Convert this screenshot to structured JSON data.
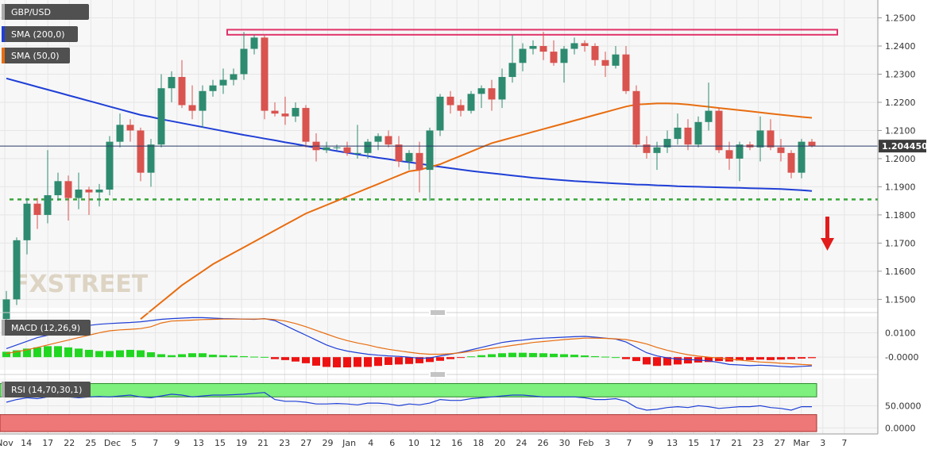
{
  "colors": {
    "up": "#2e8b6f",
    "down": "#d9534f",
    "sma200": "#1f3fd6",
    "sma50": "#e86d10",
    "support": "#3aa63a",
    "resistance": "#e0336a",
    "arrow": "#e21b1b",
    "macd_pos": "#21d621",
    "macd_neg": "#ee1111",
    "rsi_overbought": "#7ef07e",
    "rsi_oversold": "#ee7777",
    "price_tag": "#3c3c3c"
  },
  "legend": {
    "symbol": "GBP/USD",
    "sma200": "SMA (200,0)",
    "sma50": "SMA (50,0)",
    "macd": "MACD (12,26,9)",
    "rsi": "RSI (14,70,30,1)"
  },
  "watermark": "FXSTREET",
  "chart_data": [
    {
      "type": "candlestick",
      "panel": "price",
      "ylim": [
        1.147,
        1.2555
      ],
      "y_ticks": [
        "1.2500",
        "1.2400",
        "1.2300",
        "1.2200",
        "1.2100",
        "1.2000",
        "1.1900",
        "1.1800",
        "1.1700",
        "1.1600",
        "1.1500"
      ],
      "y_tick_values": [
        1.25,
        1.24,
        1.23,
        1.22,
        1.21,
        1.2,
        1.19,
        1.18,
        1.17,
        1.16,
        1.15
      ],
      "last_price": 1.20445,
      "last_price_label": "1.204450",
      "x_labels": [
        "Nov",
        "14",
        "17",
        "22",
        "25",
        "Dec",
        "5",
        "7",
        "9",
        "13",
        "15",
        "19",
        "21",
        "23",
        "27",
        "29",
        "Jan",
        "4",
        "6",
        "10",
        "12",
        "16",
        "18",
        "20",
        "24",
        "26",
        "30",
        "Feb",
        "3",
        "7",
        "9",
        "13",
        "15",
        "17",
        "21",
        "23",
        "27",
        "Mar",
        "3",
        "7"
      ],
      "candles": [
        {
          "o": 1.143,
          "h": 1.153,
          "l": 1.138,
          "c": 1.15
        },
        {
          "o": 1.15,
          "h": 1.172,
          "l": 1.148,
          "c": 1.171
        },
        {
          "o": 1.171,
          "h": 1.186,
          "l": 1.166,
          "c": 1.184
        },
        {
          "o": 1.184,
          "h": 1.186,
          "l": 1.175,
          "c": 1.18
        },
        {
          "o": 1.18,
          "h": 1.203,
          "l": 1.177,
          "c": 1.187
        },
        {
          "o": 1.187,
          "h": 1.195,
          "l": 1.185,
          "c": 1.192
        },
        {
          "o": 1.192,
          "h": 1.194,
          "l": 1.178,
          "c": 1.186
        },
        {
          "o": 1.186,
          "h": 1.195,
          "l": 1.182,
          "c": 1.189
        },
        {
          "o": 1.189,
          "h": 1.19,
          "l": 1.18,
          "c": 1.188
        },
        {
          "o": 1.188,
          "h": 1.191,
          "l": 1.183,
          "c": 1.189
        },
        {
          "o": 1.189,
          "h": 1.208,
          "l": 1.187,
          "c": 1.206
        },
        {
          "o": 1.206,
          "h": 1.216,
          "l": 1.204,
          "c": 1.212
        },
        {
          "o": 1.212,
          "h": 1.214,
          "l": 1.206,
          "c": 1.21
        },
        {
          "o": 1.21,
          "h": 1.211,
          "l": 1.192,
          "c": 1.195
        },
        {
          "o": 1.195,
          "h": 1.207,
          "l": 1.19,
          "c": 1.205
        },
        {
          "o": 1.205,
          "h": 1.23,
          "l": 1.204,
          "c": 1.225
        },
        {
          "o": 1.225,
          "h": 1.231,
          "l": 1.22,
          "c": 1.229
        },
        {
          "o": 1.229,
          "h": 1.235,
          "l": 1.218,
          "c": 1.219
        },
        {
          "o": 1.219,
          "h": 1.226,
          "l": 1.214,
          "c": 1.217
        },
        {
          "o": 1.217,
          "h": 1.226,
          "l": 1.211,
          "c": 1.224
        },
        {
          "o": 1.224,
          "h": 1.228,
          "l": 1.222,
          "c": 1.226
        },
        {
          "o": 1.226,
          "h": 1.232,
          "l": 1.223,
          "c": 1.228
        },
        {
          "o": 1.228,
          "h": 1.232,
          "l": 1.226,
          "c": 1.23
        },
        {
          "o": 1.23,
          "h": 1.245,
          "l": 1.228,
          "c": 1.239
        },
        {
          "o": 1.239,
          "h": 1.244,
          "l": 1.237,
          "c": 1.243
        },
        {
          "o": 1.243,
          "h": 1.244,
          "l": 1.214,
          "c": 1.217
        },
        {
          "o": 1.217,
          "h": 1.22,
          "l": 1.215,
          "c": 1.216
        },
        {
          "o": 1.216,
          "h": 1.222,
          "l": 1.212,
          "c": 1.215
        },
        {
          "o": 1.215,
          "h": 1.22,
          "l": 1.213,
          "c": 1.218
        },
        {
          "o": 1.218,
          "h": 1.219,
          "l": 1.204,
          "c": 1.206
        },
        {
          "o": 1.206,
          "h": 1.209,
          "l": 1.199,
          "c": 1.203
        },
        {
          "o": 1.203,
          "h": 1.206,
          "l": 1.202,
          "c": 1.204
        },
        {
          "o": 1.204,
          "h": 1.205,
          "l": 1.203,
          "c": 1.204
        },
        {
          "o": 1.204,
          "h": 1.206,
          "l": 1.201,
          "c": 1.202
        },
        {
          "o": 1.202,
          "h": 1.212,
          "l": 1.2,
          "c": 1.202
        },
        {
          "o": 1.202,
          "h": 1.207,
          "l": 1.2,
          "c": 1.206
        },
        {
          "o": 1.206,
          "h": 1.209,
          "l": 1.203,
          "c": 1.208
        },
        {
          "o": 1.208,
          "h": 1.21,
          "l": 1.204,
          "c": 1.205
        },
        {
          "o": 1.205,
          "h": 1.208,
          "l": 1.197,
          "c": 1.199
        },
        {
          "o": 1.199,
          "h": 1.203,
          "l": 1.196,
          "c": 1.202
        },
        {
          "o": 1.202,
          "h": 1.206,
          "l": 1.188,
          "c": 1.196
        },
        {
          "o": 1.196,
          "h": 1.211,
          "l": 1.185,
          "c": 1.21
        },
        {
          "o": 1.21,
          "h": 1.223,
          "l": 1.208,
          "c": 1.222
        },
        {
          "o": 1.222,
          "h": 1.224,
          "l": 1.216,
          "c": 1.219
        },
        {
          "o": 1.219,
          "h": 1.221,
          "l": 1.215,
          "c": 1.217
        },
        {
          "o": 1.217,
          "h": 1.224,
          "l": 1.216,
          "c": 1.223
        },
        {
          "o": 1.223,
          "h": 1.226,
          "l": 1.218,
          "c": 1.225
        },
        {
          "o": 1.225,
          "h": 1.228,
          "l": 1.217,
          "c": 1.221
        },
        {
          "o": 1.221,
          "h": 1.232,
          "l": 1.218,
          "c": 1.229
        },
        {
          "o": 1.229,
          "h": 1.244,
          "l": 1.227,
          "c": 1.234
        },
        {
          "o": 1.234,
          "h": 1.241,
          "l": 1.231,
          "c": 1.239
        },
        {
          "o": 1.239,
          "h": 1.242,
          "l": 1.237,
          "c": 1.24
        },
        {
          "o": 1.24,
          "h": 1.245,
          "l": 1.235,
          "c": 1.238
        },
        {
          "o": 1.238,
          "h": 1.242,
          "l": 1.233,
          "c": 1.234
        },
        {
          "o": 1.234,
          "h": 1.24,
          "l": 1.227,
          "c": 1.239
        },
        {
          "o": 1.239,
          "h": 1.243,
          "l": 1.237,
          "c": 1.241
        },
        {
          "o": 1.241,
          "h": 1.242,
          "l": 1.238,
          "c": 1.24
        },
        {
          "o": 1.24,
          "h": 1.241,
          "l": 1.233,
          "c": 1.235
        },
        {
          "o": 1.235,
          "h": 1.238,
          "l": 1.229,
          "c": 1.233
        },
        {
          "o": 1.233,
          "h": 1.24,
          "l": 1.232,
          "c": 1.237
        },
        {
          "o": 1.237,
          "h": 1.24,
          "l": 1.223,
          "c": 1.224
        },
        {
          "o": 1.224,
          "h": 1.226,
          "l": 1.204,
          "c": 1.205
        },
        {
          "o": 1.205,
          "h": 1.208,
          "l": 1.2,
          "c": 1.202
        },
        {
          "o": 1.202,
          "h": 1.206,
          "l": 1.196,
          "c": 1.204
        },
        {
          "o": 1.204,
          "h": 1.21,
          "l": 1.202,
          "c": 1.207
        },
        {
          "o": 1.207,
          "h": 1.216,
          "l": 1.205,
          "c": 1.211
        },
        {
          "o": 1.211,
          "h": 1.214,
          "l": 1.203,
          "c": 1.205
        },
        {
          "o": 1.205,
          "h": 1.215,
          "l": 1.204,
          "c": 1.213
        },
        {
          "o": 1.213,
          "h": 1.227,
          "l": 1.21,
          "c": 1.217
        },
        {
          "o": 1.217,
          "h": 1.218,
          "l": 1.202,
          "c": 1.203
        },
        {
          "o": 1.203,
          "h": 1.206,
          "l": 1.196,
          "c": 1.2
        },
        {
          "o": 1.2,
          "h": 1.206,
          "l": 1.192,
          "c": 1.205
        },
        {
          "o": 1.205,
          "h": 1.206,
          "l": 1.203,
          "c": 1.204
        },
        {
          "o": 1.204,
          "h": 1.215,
          "l": 1.199,
          "c": 1.21
        },
        {
          "o": 1.21,
          "h": 1.214,
          "l": 1.203,
          "c": 1.204
        },
        {
          "o": 1.204,
          "h": 1.207,
          "l": 1.199,
          "c": 1.202
        },
        {
          "o": 1.202,
          "h": 1.203,
          "l": 1.193,
          "c": 1.195
        },
        {
          "o": 1.195,
          "h": 1.207,
          "l": 1.193,
          "c": 1.206
        },
        {
          "o": 1.206,
          "h": 1.207,
          "l": 1.204,
          "c": 1.20445
        }
      ],
      "sma200": [
        1.2285,
        1.2275,
        1.2265,
        1.2255,
        1.2245,
        1.2235,
        1.2225,
        1.2215,
        1.2205,
        1.2195,
        1.2185,
        1.2175,
        1.2165,
        1.2155,
        1.2148,
        1.214,
        1.2133,
        1.2126,
        1.2119,
        1.2112,
        1.2105,
        1.2098,
        1.2091,
        1.2084,
        1.2078,
        1.2071,
        1.2065,
        1.2058,
        1.2052,
        1.2045,
        1.2039,
        1.2033,
        1.2027,
        1.2021,
        1.2015,
        1.2009,
        1.2003,
        1.1998,
        1.1992,
        1.1987,
        1.1982,
        1.1976,
        1.1971,
        1.1966,
        1.1961,
        1.1956,
        1.1952,
        1.1948,
        1.1944,
        1.194,
        1.1936,
        1.1932,
        1.1929,
        1.1926,
        1.1923,
        1.192,
        1.1918,
        1.1916,
        1.1914,
        1.1912,
        1.191,
        1.1908,
        1.1907,
        1.1905,
        1.1904,
        1.1902,
        1.1901,
        1.19,
        1.1899,
        1.1898,
        1.1897,
        1.1896,
        1.1895,
        1.1894,
        1.1893,
        1.1892,
        1.189,
        1.1888,
        1.1885
      ],
      "sma50": [
        1.143,
        1.143,
        1.143,
        1.143,
        1.143,
        1.143,
        1.143,
        1.143,
        1.143,
        1.143,
        1.143,
        1.143,
        1.143,
        1.143,
        1.146,
        1.149,
        1.152,
        1.155,
        1.1575,
        1.16,
        1.1625,
        1.1645,
        1.1665,
        1.1685,
        1.1705,
        1.1725,
        1.1745,
        1.1765,
        1.1785,
        1.1805,
        1.182,
        1.1835,
        1.185,
        1.1865,
        1.188,
        1.1895,
        1.191,
        1.1925,
        1.194,
        1.1955,
        1.196,
        1.197,
        1.198,
        1.1995,
        1.201,
        1.2025,
        1.204,
        1.2055,
        1.2065,
        1.2075,
        1.2085,
        1.2095,
        1.2105,
        1.2115,
        1.2125,
        1.2135,
        1.2145,
        1.2155,
        1.2165,
        1.2175,
        1.2185,
        1.2192,
        1.2194,
        1.2196,
        1.2196,
        1.2195,
        1.2192,
        1.2188,
        1.2184,
        1.218,
        1.2176,
        1.2172,
        1.2168,
        1.2164,
        1.216,
        1.2156,
        1.2152,
        1.2148,
        1.2145
      ],
      "resistance_band": [
        1.244,
        1.2458
      ],
      "support_level": 1.1855
    },
    {
      "type": "macd",
      "panel": "macd",
      "ylim": [
        -0.0045,
        0.016
      ],
      "y_ticks": [
        "0.0100",
        "-0.0000"
      ],
      "y_tick_values": [
        0.01,
        0.0
      ],
      "histogram": [
        0.0022,
        0.0028,
        0.0035,
        0.004,
        0.0045,
        0.0045,
        0.004,
        0.0035,
        0.003,
        0.0025,
        0.0025,
        0.0028,
        0.003,
        0.0028,
        0.002,
        0.0012,
        0.0008,
        0.0012,
        0.0016,
        0.0016,
        0.001,
        0.0008,
        0.0006,
        0.0004,
        0.0002,
        0.0001,
        -0.0008,
        -0.0012,
        -0.0018,
        -0.0025,
        -0.0035,
        -0.004,
        -0.0042,
        -0.0042,
        -0.004,
        -0.004,
        -0.0036,
        -0.0032,
        -0.003,
        -0.0028,
        -0.0025,
        -0.002,
        -0.0015,
        -0.0008,
        -0.0003,
        0.0003,
        0.0008,
        0.0012,
        0.0016,
        0.0018,
        0.0018,
        0.0017,
        0.0016,
        0.0014,
        0.0012,
        0.001,
        0.0007,
        0.0004,
        0.0002,
        0.0,
        -0.0008,
        -0.0016,
        -0.003,
        -0.0036,
        -0.0034,
        -0.003,
        -0.0026,
        -0.0022,
        -0.002,
        -0.0016,
        -0.0018,
        -0.0014,
        -0.0012,
        -0.001,
        -0.0012,
        -0.001,
        -0.0008,
        -0.0006,
        -0.0004
      ],
      "macd_line": [
        0.0035,
        0.005,
        0.0065,
        0.008,
        0.009,
        0.01,
        0.011,
        0.012,
        0.013,
        0.0135,
        0.0138,
        0.014,
        0.0142,
        0.0145,
        0.015,
        0.0155,
        0.0158,
        0.016,
        0.0162,
        0.0162,
        0.016,
        0.0158,
        0.0157,
        0.0156,
        0.0155,
        0.0158,
        0.015,
        0.013,
        0.011,
        0.009,
        0.007,
        0.005,
        0.0035,
        0.0025,
        0.0018,
        0.0012,
        0.0008,
        0.0005,
        0.0003,
        0.0,
        -0.0005,
        -0.0003,
        0.0005,
        0.0012,
        0.002,
        0.003,
        0.004,
        0.005,
        0.006,
        0.0066,
        0.007,
        0.0075,
        0.0078,
        0.008,
        0.0082,
        0.0084,
        0.0085,
        0.0082,
        0.0078,
        0.0074,
        0.0062,
        0.004,
        0.0018,
        0.0005,
        -0.0003,
        -0.0008,
        -0.001,
        -0.0012,
        -0.0015,
        -0.0022,
        -0.003,
        -0.0032,
        -0.0035,
        -0.0033,
        -0.0035,
        -0.0038,
        -0.004,
        -0.0038,
        -0.0036
      ],
      "signal_line": [
        0.0015,
        0.0022,
        0.003,
        0.004,
        0.005,
        0.006,
        0.007,
        0.008,
        0.009,
        0.01,
        0.0108,
        0.0112,
        0.0114,
        0.0117,
        0.0125,
        0.014,
        0.0148,
        0.015,
        0.0152,
        0.0154,
        0.0155,
        0.0156,
        0.0156,
        0.0156,
        0.0156,
        0.0157,
        0.0154,
        0.0148,
        0.0138,
        0.0125,
        0.011,
        0.0095,
        0.008,
        0.0068,
        0.0058,
        0.005,
        0.004,
        0.0032,
        0.0026,
        0.002,
        0.0015,
        0.0012,
        0.0012,
        0.0014,
        0.0018,
        0.0024,
        0.003,
        0.0036,
        0.0042,
        0.0048,
        0.0054,
        0.006,
        0.0064,
        0.0068,
        0.0072,
        0.0075,
        0.0078,
        0.0078,
        0.0077,
        0.0075,
        0.0072,
        0.0064,
        0.0054,
        0.004,
        0.0028,
        0.0018,
        0.001,
        0.0004,
        0.0,
        -0.0004,
        -0.0008,
        -0.0012,
        -0.0016,
        -0.002,
        -0.0022,
        -0.0025,
        -0.0027,
        -0.003,
        -0.0032
      ]
    },
    {
      "type": "line",
      "panel": "rsi",
      "ylim": [
        -10,
        108
      ],
      "y_ticks": [
        "50.0000",
        "0.0000"
      ],
      "y_tick_values": [
        50,
        0
      ],
      "overbought": 70,
      "oversold": 30,
      "rsi": [
        58,
        64,
        68,
        66,
        70,
        72,
        70,
        68,
        70,
        71,
        70,
        72,
        74,
        70,
        68,
        72,
        76,
        74,
        70,
        72,
        74,
        74,
        75,
        76,
        78,
        80,
        64,
        60,
        60,
        58,
        54,
        54,
        55,
        54,
        52,
        56,
        56,
        54,
        50,
        54,
        52,
        56,
        64,
        62,
        62,
        66,
        68,
        70,
        72,
        74,
        74,
        72,
        70,
        70,
        70,
        70,
        68,
        64,
        64,
        66,
        60,
        46,
        40,
        42,
        46,
        48,
        46,
        50,
        48,
        44,
        46,
        48,
        48,
        50,
        46,
        44,
        40,
        48,
        48
      ]
    }
  ]
}
